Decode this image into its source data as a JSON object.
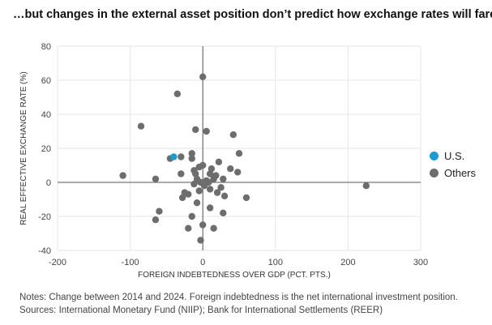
{
  "title": "…but changes in the external asset position don’t predict how exchange rates will fare",
  "notes": [
    "Notes: Change between 2014 and 2024. Foreign indebtedness is the net international investment position.",
    "Sources: International Monetary Fund (NIIP); Bank for International Settlements (REER)"
  ],
  "colors": {
    "us": "#1a9ad6",
    "others": "#6d6d6d"
  },
  "chart_data": {
    "type": "scatter",
    "xlabel": "FOREIGN INDEBTEDNESS OVER GDP (PCT. PTS.)",
    "ylabel": "REAL EFFECTIVE EXCHANGE RATE (%)",
    "xlim": [
      -200,
      300
    ],
    "ylim": [
      -40,
      80
    ],
    "xticks": [
      "-200",
      "-100",
      "0",
      "100",
      "200",
      "300"
    ],
    "yticks": [
      "80",
      "60",
      "40",
      "20",
      "0",
      "-20",
      "-40"
    ],
    "grid": true,
    "legend_position": "right",
    "series": [
      {
        "name": "U.S.",
        "points": [
          [
            -40,
            15
          ]
        ]
      },
      {
        "name": "Others",
        "points": [
          [
            0,
            62
          ],
          [
            -35,
            52
          ],
          [
            -85,
            33
          ],
          [
            -10,
            31
          ],
          [
            5,
            30
          ],
          [
            42,
            28
          ],
          [
            -15,
            17
          ],
          [
            50,
            17
          ],
          [
            -45,
            14
          ],
          [
            -30,
            15
          ],
          [
            -15,
            14
          ],
          [
            22,
            12
          ],
          [
            -5,
            9
          ],
          [
            0,
            10
          ],
          [
            12,
            8
          ],
          [
            -12,
            7
          ],
          [
            38,
            8
          ],
          [
            48,
            6
          ],
          [
            -30,
            5
          ],
          [
            -10,
            5
          ],
          [
            10,
            5
          ],
          [
            18,
            4
          ],
          [
            -110,
            4
          ],
          [
            -65,
            2
          ],
          [
            -8,
            2
          ],
          [
            5,
            1
          ],
          [
            15,
            2
          ],
          [
            28,
            2
          ],
          [
            -3,
            0
          ],
          [
            8,
            0
          ],
          [
            -12,
            -1
          ],
          [
            2,
            -2
          ],
          [
            25,
            -3
          ],
          [
            10,
            -4
          ],
          [
            -5,
            -5
          ],
          [
            20,
            -6
          ],
          [
            -25,
            -6
          ],
          [
            -20,
            -7
          ],
          [
            30,
            -8
          ],
          [
            -28,
            -9
          ],
          [
            60,
            -9
          ],
          [
            -8,
            -12
          ],
          [
            10,
            -15
          ],
          [
            -60,
            -17
          ],
          [
            28,
            -18
          ],
          [
            -15,
            -20
          ],
          [
            -65,
            -22
          ],
          [
            0,
            -25
          ],
          [
            -20,
            -27
          ],
          [
            15,
            -27
          ],
          [
            -3,
            -34
          ],
          [
            225,
            -2
          ]
        ]
      }
    ]
  }
}
